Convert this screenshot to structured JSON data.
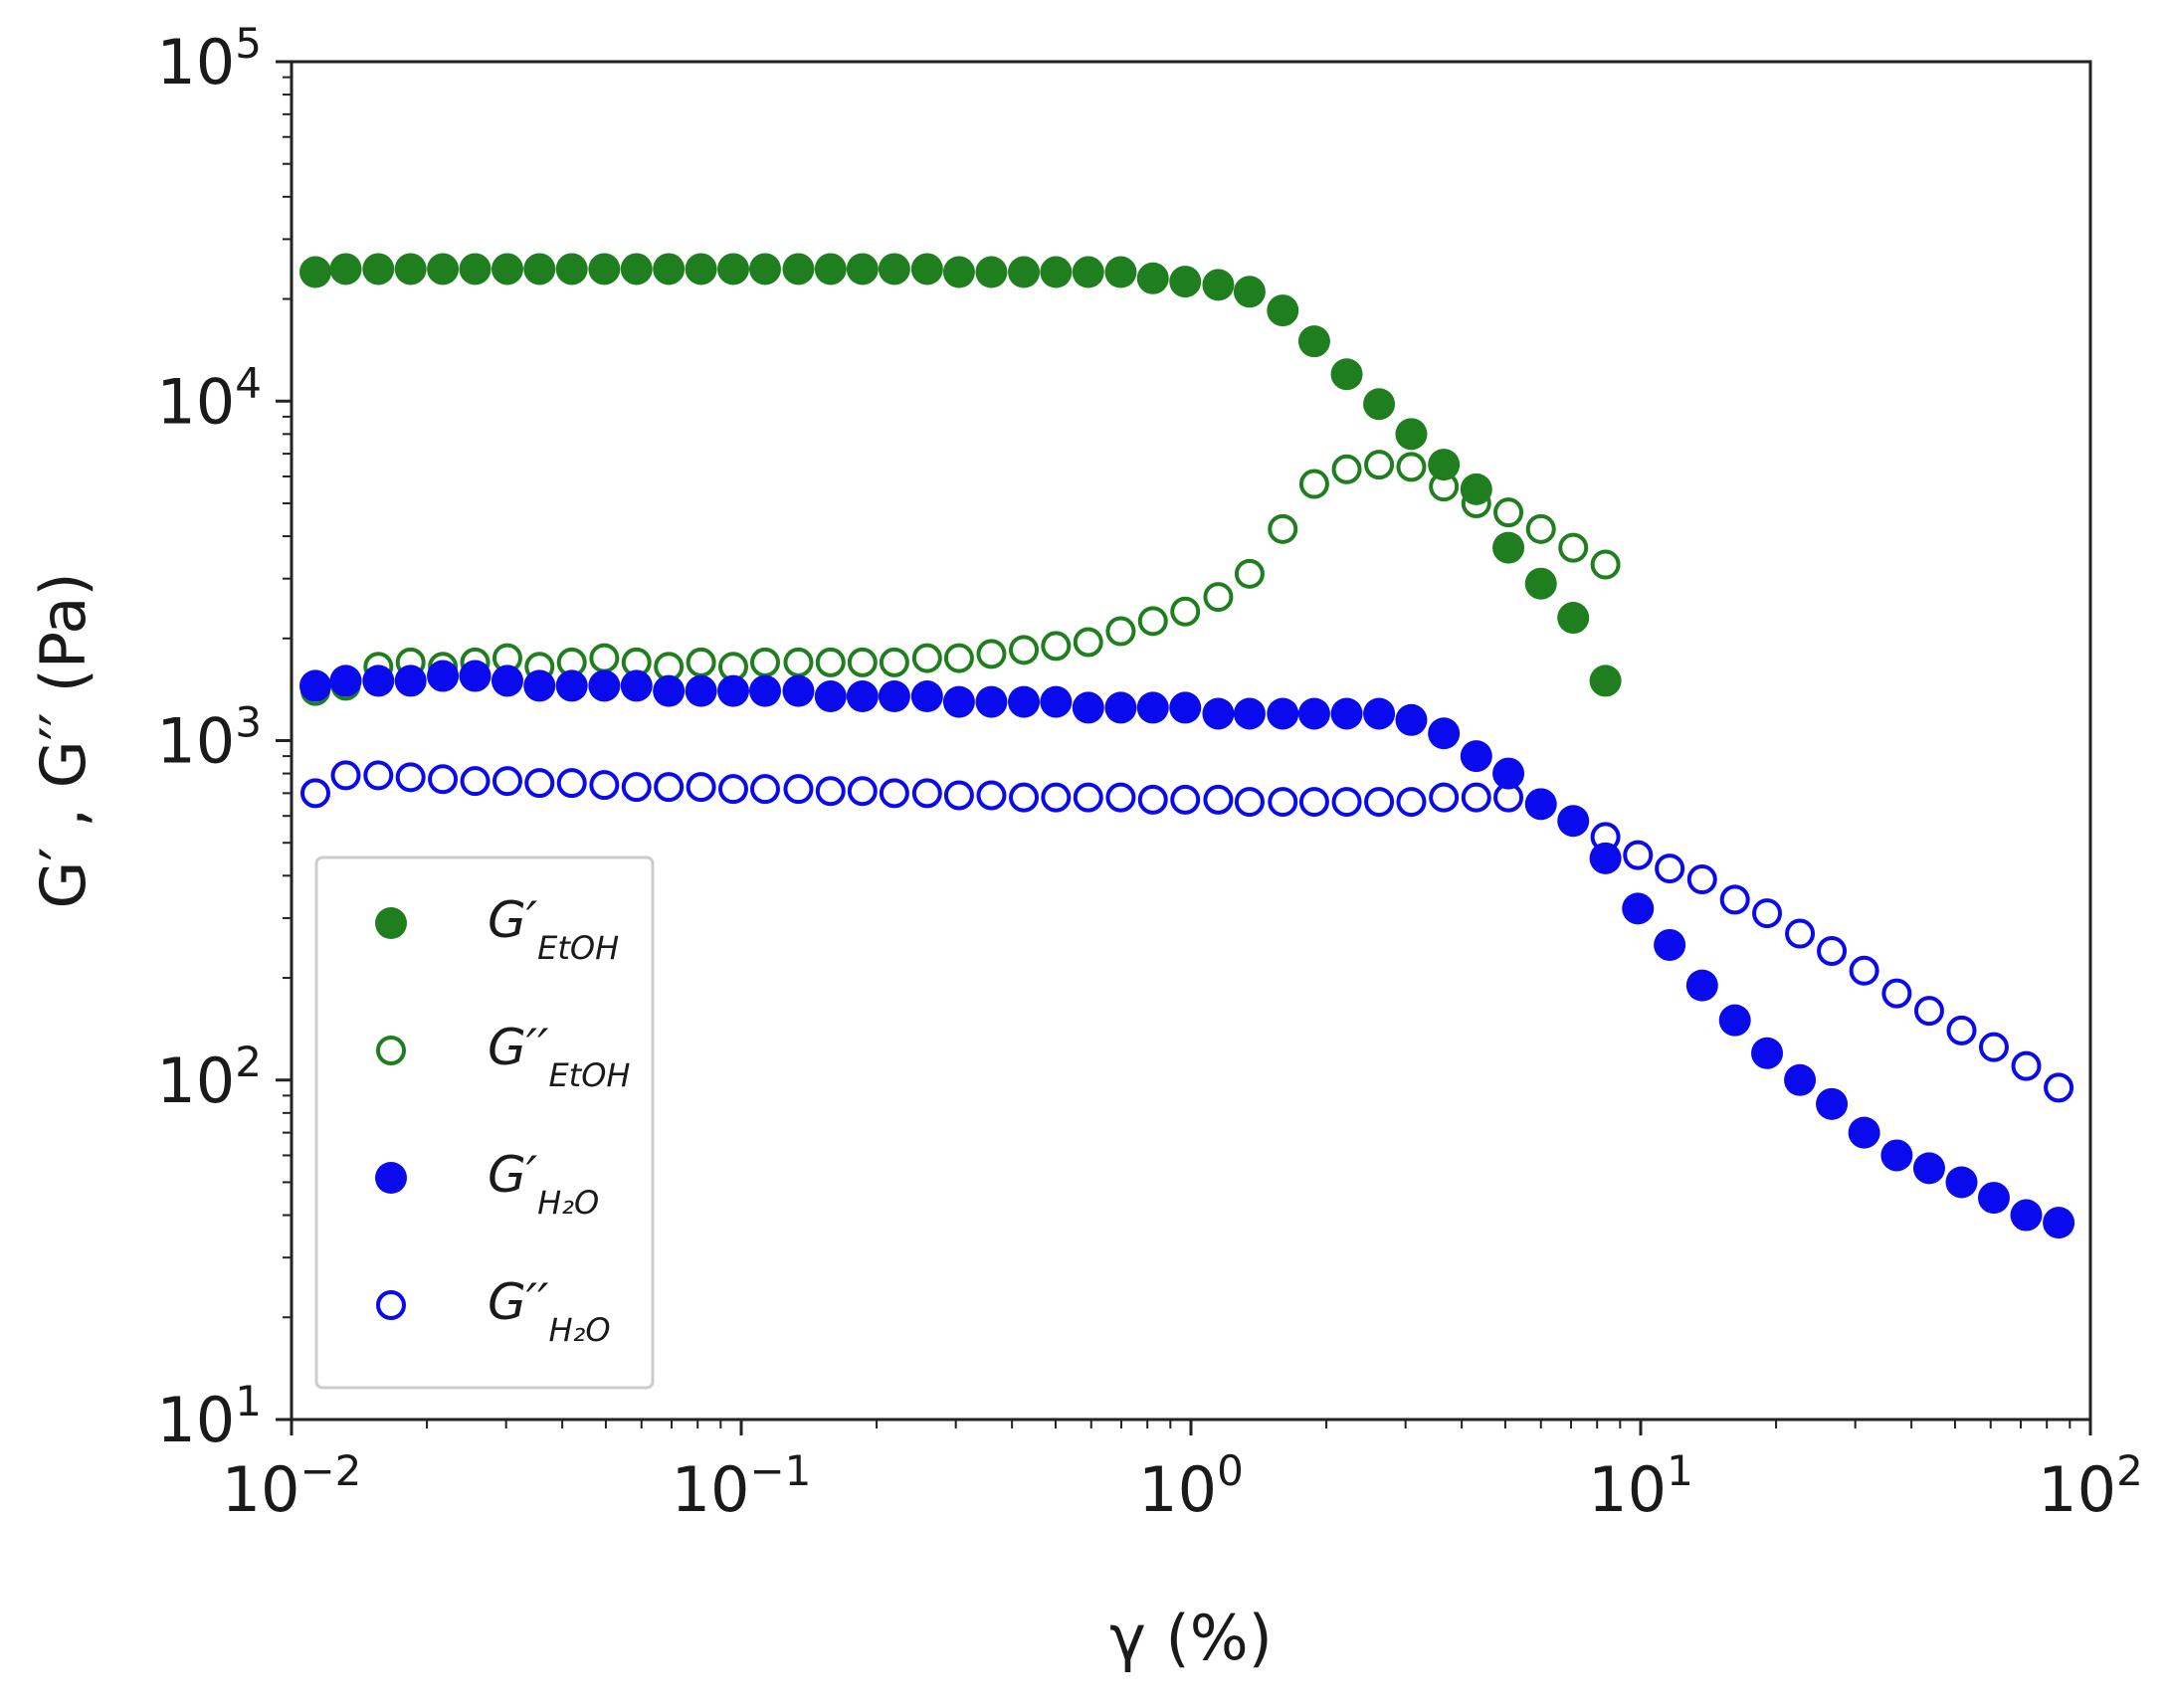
{
  "chart_data": {
    "type": "scatter",
    "title": "",
    "xlabel": "γ (%)",
    "ylabel": "G′ , G′′ (Pa)",
    "xscale": "log",
    "yscale": "log",
    "xlim": [
      0.01,
      100
    ],
    "ylim": [
      10,
      100000
    ],
    "grid": false,
    "legend_location": "lower-left",
    "x_ticks": [
      {
        "base": "10",
        "exp": "−2"
      },
      {
        "base": "10",
        "exp": "−1"
      },
      {
        "base": "10",
        "exp": "0"
      },
      {
        "base": "10",
        "exp": "1"
      },
      {
        "base": "10",
        "exp": "2"
      }
    ],
    "y_ticks": [
      {
        "base": "10",
        "exp": "1"
      },
      {
        "base": "10",
        "exp": "2"
      },
      {
        "base": "10",
        "exp": "3"
      },
      {
        "base": "10",
        "exp": "4"
      },
      {
        "base": "10",
        "exp": "5"
      }
    ],
    "series": [
      {
        "name": "G′ EtOH",
        "symbol": "G′",
        "subscript": "EtOH",
        "color": "#1f7f1f",
        "filled": true,
        "x": [
          0.0113,
          0.0132,
          0.0156,
          0.0184,
          0.0217,
          0.0256,
          0.0302,
          0.0356,
          0.042,
          0.0496,
          0.0585,
          0.069,
          0.0814,
          0.096,
          0.113,
          0.134,
          0.158,
          0.186,
          0.219,
          0.259,
          0.305,
          0.36,
          0.425,
          0.501,
          0.591,
          0.698,
          0.823,
          0.971,
          1.15,
          1.35,
          1.6,
          1.88,
          2.22,
          2.62,
          3.09,
          3.65,
          4.31,
          5.08,
          6.0,
          7.08,
          8.35
        ],
        "values": [
          24000,
          24500,
          24500,
          24500,
          24500,
          24500,
          24500,
          24500,
          24500,
          24500,
          24500,
          24500,
          24500,
          24500,
          24500,
          24500,
          24500,
          24500,
          24500,
          24500,
          24000,
          24000,
          24000,
          24000,
          24000,
          24000,
          23000,
          22500,
          22000,
          21000,
          18500,
          15000,
          12000,
          9800,
          8000,
          6500,
          5500,
          3700,
          2900,
          2300,
          1500
        ]
      },
      {
        "name": "G′′ EtOH",
        "symbol": "G′′",
        "subscript": "EtOH",
        "color": "#1f7f1f",
        "filled": false,
        "x": [
          0.0113,
          0.0132,
          0.0156,
          0.0184,
          0.0217,
          0.0256,
          0.0302,
          0.0356,
          0.042,
          0.0496,
          0.0585,
          0.069,
          0.0814,
          0.096,
          0.113,
          0.134,
          0.158,
          0.186,
          0.219,
          0.259,
          0.305,
          0.36,
          0.425,
          0.501,
          0.591,
          0.698,
          0.823,
          0.971,
          1.15,
          1.35,
          1.6,
          1.88,
          2.22,
          2.62,
          3.09,
          3.65,
          4.31,
          5.08,
          6.0,
          7.08,
          8.35
        ],
        "values": [
          1400,
          1450,
          1650,
          1700,
          1650,
          1700,
          1750,
          1650,
          1700,
          1750,
          1700,
          1650,
          1700,
          1650,
          1700,
          1700,
          1700,
          1700,
          1700,
          1750,
          1750,
          1800,
          1850,
          1900,
          1950,
          2100,
          2250,
          2400,
          2650,
          3100,
          4200,
          5700,
          6300,
          6500,
          6400,
          5600,
          5000,
          4700,
          4200,
          3700,
          3300
        ]
      },
      {
        "name": "G′ H2O",
        "symbol": "G′",
        "subscript": "H₂O",
        "color": "#0a0aee",
        "filled": true,
        "x": [
          0.0113,
          0.0132,
          0.0156,
          0.0184,
          0.0217,
          0.0256,
          0.0302,
          0.0356,
          0.042,
          0.0496,
          0.0585,
          0.069,
          0.0814,
          0.096,
          0.113,
          0.134,
          0.158,
          0.186,
          0.219,
          0.259,
          0.305,
          0.36,
          0.425,
          0.501,
          0.591,
          0.698,
          0.823,
          0.971,
          1.15,
          1.35,
          1.6,
          1.88,
          2.22,
          2.62,
          3.09,
          3.65,
          4.31,
          5.08,
          6.0,
          7.08,
          8.35,
          9.86,
          11.6,
          13.7,
          16.2,
          19.1,
          22.6,
          26.6,
          31.4,
          37.1,
          43.8,
          51.7,
          61.0,
          72.0,
          85.0
        ],
        "values": [
          1450,
          1500,
          1500,
          1500,
          1550,
          1550,
          1500,
          1450,
          1450,
          1450,
          1450,
          1400,
          1400,
          1400,
          1400,
          1400,
          1350,
          1350,
          1350,
          1350,
          1300,
          1300,
          1300,
          1300,
          1250,
          1250,
          1250,
          1250,
          1200,
          1200,
          1200,
          1200,
          1200,
          1200,
          1150,
          1050,
          900,
          800,
          650,
          580,
          450,
          320,
          250,
          190,
          150,
          120,
          100,
          85,
          70,
          60,
          55,
          50,
          45,
          40,
          38
        ]
      },
      {
        "name": "G′′ H2O",
        "symbol": "G′′",
        "subscript": "H₂O",
        "color": "#0a0aee",
        "filled": false,
        "x": [
          0.0113,
          0.0132,
          0.0156,
          0.0184,
          0.0217,
          0.0256,
          0.0302,
          0.0356,
          0.042,
          0.0496,
          0.0585,
          0.069,
          0.0814,
          0.096,
          0.113,
          0.134,
          0.158,
          0.186,
          0.219,
          0.259,
          0.305,
          0.36,
          0.425,
          0.501,
          0.591,
          0.698,
          0.823,
          0.971,
          1.15,
          1.35,
          1.6,
          1.88,
          2.22,
          2.62,
          3.09,
          3.65,
          4.31,
          5.08,
          6.0,
          7.08,
          8.35,
          9.86,
          11.6,
          13.7,
          16.2,
          19.1,
          22.6,
          26.6,
          31.4,
          37.1,
          43.8,
          51.7,
          61.0,
          72.0,
          85.0
        ],
        "values": [
          700,
          790,
          790,
          780,
          770,
          760,
          760,
          750,
          750,
          740,
          730,
          730,
          730,
          720,
          720,
          720,
          710,
          710,
          700,
          700,
          690,
          690,
          680,
          680,
          680,
          680,
          670,
          670,
          670,
          660,
          660,
          660,
          660,
          660,
          660,
          680,
          680,
          680,
          650,
          580,
          520,
          460,
          420,
          390,
          340,
          310,
          270,
          240,
          210,
          180,
          160,
          140,
          125,
          110,
          95
        ]
      }
    ]
  }
}
